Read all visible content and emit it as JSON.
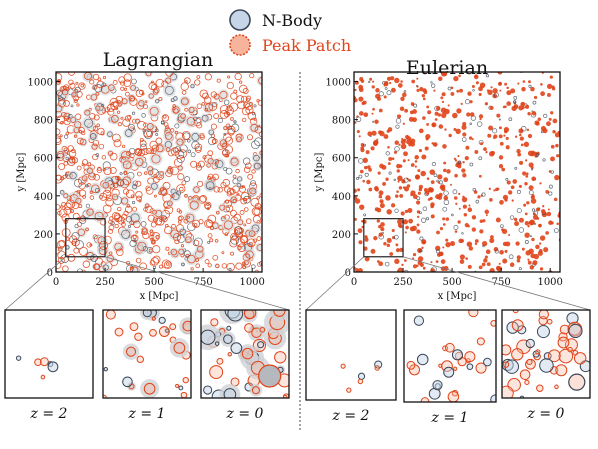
{
  "legend": {
    "nbody": "N-Body",
    "peakpatch": "Peak Patch"
  },
  "colors": {
    "peakpatch_stroke": "#e0441a",
    "peakpatch_fill": "#f6b49c",
    "nbody_stroke": "#3b4656",
    "nbody_fill": "#c6d6e8",
    "peakpatch_legend_text": "#e0441a"
  },
  "chart_data": [
    {
      "type": "scatter",
      "title": "Lagrangian",
      "xlabel": "x [Mpc]",
      "ylabel": "y [Mpc]",
      "xlim": [
        0,
        1050
      ],
      "ylim": [
        0,
        1050
      ],
      "xticks": [
        "0",
        "250",
        "500",
        "750",
        "1000"
      ],
      "yticks": [
        "0",
        "200",
        "400",
        "600",
        "800",
        "1000"
      ],
      "zoom_region": {
        "x": [
          50,
          250
        ],
        "y": [
          80,
          280
        ]
      },
      "series": [
        {
          "name": "N-Body"
        },
        {
          "name": "Peak Patch"
        }
      ],
      "insets": [
        {
          "label": "z = 2"
        },
        {
          "label": "z = 1"
        },
        {
          "label": "z = 0"
        }
      ]
    },
    {
      "type": "scatter",
      "title": "Eulerian",
      "xlabel": "x [Mpc]",
      "ylabel": "y [Mpc]",
      "xlim": [
        0,
        1050
      ],
      "ylim": [
        0,
        1050
      ],
      "xticks": [
        "0",
        "250",
        "500",
        "750",
        "1000"
      ],
      "yticks": [
        "0",
        "200",
        "400",
        "600",
        "800",
        "1000"
      ],
      "zoom_region": {
        "x": [
          50,
          250
        ],
        "y": [
          80,
          280
        ]
      },
      "series": [
        {
          "name": "N-Body"
        },
        {
          "name": "Peak Patch"
        }
      ],
      "insets": [
        {
          "label": "z = 2"
        },
        {
          "label": "z = 1"
        },
        {
          "label": "z = 0"
        }
      ]
    }
  ]
}
